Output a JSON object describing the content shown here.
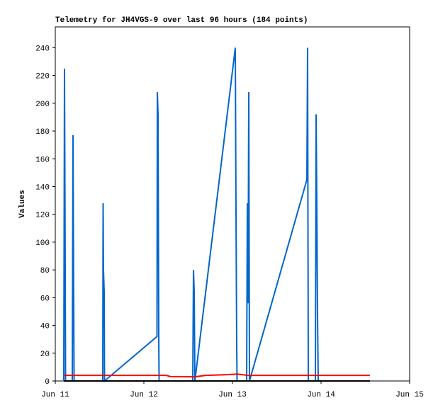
{
  "chart_data": {
    "type": "line",
    "title": "Telemetry for JH4VGS-9 over last 96 hours (184 points)",
    "y_label": "Values",
    "xlim": [
      11,
      15
    ],
    "xticks": [
      {
        "value": 11,
        "label": "Jun 11"
      },
      {
        "value": 12,
        "label": "Jun 12"
      },
      {
        "value": 13,
        "label": "Jun 13"
      },
      {
        "value": 14,
        "label": "Jun 14"
      },
      {
        "value": 15,
        "label": "Jun 15"
      }
    ],
    "ylim": [
      0,
      255
    ],
    "yticks": [
      0,
      20,
      40,
      60,
      80,
      100,
      120,
      140,
      160,
      180,
      200,
      220,
      240
    ],
    "series": [
      {
        "color": "#0066cc",
        "x": [
          11.096,
          11.104,
          11.112,
          11.116,
          11.192,
          11.2,
          11.208,
          11.212,
          11.536,
          11.54,
          11.544,
          11.552,
          11.556,
          12.148,
          12.152,
          12.16,
          12.168,
          12.172,
          12.552,
          12.56,
          12.568,
          12.576,
          13.032,
          13.04,
          13.048,
          13.052,
          13.16,
          13.168,
          13.176,
          13.184,
          13.192,
          13.84,
          13.848,
          13.856,
          13.936,
          13.944,
          13.952,
          13.96,
          13.968
        ],
        "values": [
          0,
          225,
          80,
          0,
          0,
          177,
          56,
          0,
          0,
          128,
          80,
          64,
          0,
          32,
          208,
          192,
          32,
          0,
          0,
          80,
          64,
          0,
          240,
          120,
          24,
          0,
          0,
          128,
          56,
          208,
          0,
          145,
          240,
          0,
          0,
          192,
          128,
          48,
          0
        ]
      },
      {
        "color": "#ff0000",
        "x": [
          11.096,
          12.256,
          12.296,
          12.576,
          12.696,
          12.936,
          13.056,
          13.176,
          14.552
        ],
        "values": [
          4,
          4,
          3.2,
          3,
          4,
          4.5,
          5,
          4,
          4
        ]
      },
      {
        "color": "#000000",
        "x": [
          11.096,
          14.552
        ],
        "values": [
          0,
          0
        ]
      }
    ]
  }
}
